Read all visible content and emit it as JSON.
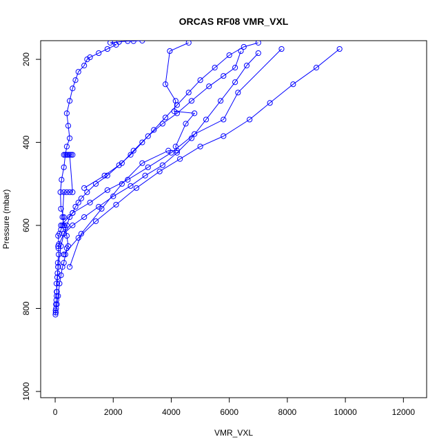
{
  "chart_data": {
    "type": "scatter",
    "title": "ORCAS RF08 VMR_VXL",
    "xlabel": "VMR_VXL",
    "ylabel": "Pressure (mbar)",
    "xlim": [
      -500,
      12800
    ],
    "ylim": [
      1015,
      155
    ],
    "y_reversed": true,
    "x_ticks": [
      0,
      2000,
      4000,
      6000,
      8000,
      10000,
      12000
    ],
    "y_ticks": [
      200,
      400,
      600,
      800,
      1000
    ],
    "x_tick_labels": [
      "0",
      "2000",
      "4000",
      "6000",
      "8000",
      "10000",
      "12000"
    ],
    "y_tick_labels": [
      "200",
      "400",
      "600",
      "800",
      "1000"
    ],
    "grid": false,
    "legend": "none",
    "series_color": "#0000ff",
    "marker": "open-circle",
    "connected": true,
    "series": [
      {
        "x": [
          10,
          20,
          15,
          30,
          25,
          40,
          50,
          60,
          45,
          70,
          80,
          100,
          90,
          120,
          110,
          130,
          100,
          150,
          200,
          250,
          300,
          200,
          180,
          220,
          300,
          350,
          400,
          500,
          450,
          400,
          500,
          600,
          700,
          800,
          1000,
          1100,
          1200,
          1500,
          1800,
          2100,
          1900,
          2200,
          2500,
          2700,
          3000
        ],
        "y": [
          815,
          810,
          805,
          800,
          790,
          780,
          770,
          760,
          740,
          725,
          715,
          700,
          690,
          670,
          655,
          645,
          625,
          620,
          610,
          600,
          580,
          560,
          520,
          490,
          460,
          430,
          410,
          390,
          360,
          330,
          300,
          270,
          250,
          230,
          215,
          200,
          195,
          185,
          175,
          165,
          160,
          158,
          156,
          156,
          155
        ]
      },
      {
        "x": [
          20,
          60,
          100,
          150,
          200,
          250,
          300,
          350,
          400,
          450,
          400,
          350,
          300,
          250,
          300,
          400,
          500,
          600,
          500,
          400,
          300,
          350,
          400,
          450,
          500,
          550,
          600
        ],
        "y": [
          810,
          790,
          770,
          740,
          720,
          700,
          690,
          670,
          655,
          650,
          625,
          605,
          600,
          580,
          520,
          520,
          520,
          520,
          430,
          430,
          430,
          430,
          430,
          430,
          430,
          430,
          430
        ]
      },
      {
        "x": [
          50,
          100,
          200,
          300,
          400,
          500,
          600,
          700,
          800,
          900,
          1100,
          1400,
          1800,
          2200,
          2600,
          3000,
          3400,
          3800,
          4200,
          4600,
          5000,
          5500,
          6000,
          6500,
          7000
        ],
        "y": [
          760,
          700,
          650,
          620,
          600,
          580,
          570,
          555,
          545,
          535,
          520,
          500,
          480,
          455,
          430,
          400,
          370,
          340,
          310,
          280,
          250,
          220,
          190,
          170,
          160
        ]
      },
      {
        "x": [
          100,
          300,
          600,
          1000,
          1500,
          2000,
          2600,
          3100,
          3700,
          4200,
          4700,
          5200,
          5700,
          6200,
          6600,
          7000
        ],
        "y": [
          650,
          620,
          600,
          580,
          555,
          530,
          505,
          480,
          455,
          425,
          390,
          345,
          300,
          255,
          215,
          185
        ]
      },
      {
        "x": [
          300,
          800,
          1400,
          2100,
          2800,
          3600,
          4300,
          5000,
          5800,
          6700,
          7400,
          8200,
          9000,
          9800
        ],
        "y": [
          670,
          630,
          590,
          550,
          510,
          470,
          440,
          410,
          385,
          345,
          305,
          260,
          220,
          175
        ]
      },
      {
        "x": [
          200,
          600,
          1200,
          1800,
          2500,
          3200,
          4000,
          4800,
          5800,
          6300,
          7800
        ],
        "y": [
          600,
          570,
          545,
          515,
          490,
          460,
          425,
          380,
          345,
          280,
          175
        ]
      },
      {
        "x": [
          500,
          900,
          1600,
          2300,
          3000,
          3900,
          4200,
          4150,
          4500,
          4800,
          4100,
          4150,
          3800,
          3950,
          4600
        ],
        "y": [
          700,
          620,
          560,
          500,
          450,
          420,
          420,
          410,
          355,
          330,
          325,
          300,
          260,
          180,
          160
        ]
      },
      {
        "x": [
          1000,
          1700,
          2300,
          2700,
          3200,
          3700,
          4200,
          4700,
          5300,
          5800,
          6200,
          6400
        ],
        "y": [
          510,
          480,
          450,
          420,
          385,
          355,
          330,
          300,
          265,
          240,
          220,
          180
        ]
      }
    ]
  }
}
